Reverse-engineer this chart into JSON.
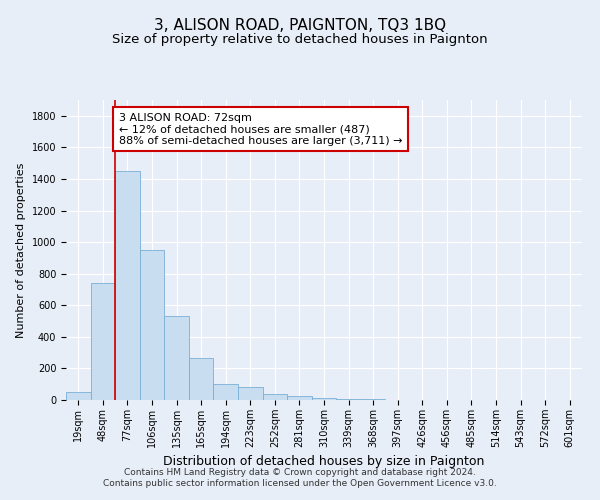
{
  "title": "3, ALISON ROAD, PAIGNTON, TQ3 1BQ",
  "subtitle": "Size of property relative to detached houses in Paignton",
  "xlabel": "Distribution of detached houses by size in Paignton",
  "ylabel": "Number of detached properties",
  "categories": [
    "19sqm",
    "48sqm",
    "77sqm",
    "106sqm",
    "135sqm",
    "165sqm",
    "194sqm",
    "223sqm",
    "252sqm",
    "281sqm",
    "310sqm",
    "339sqm",
    "368sqm",
    "397sqm",
    "426sqm",
    "456sqm",
    "485sqm",
    "514sqm",
    "543sqm",
    "572sqm",
    "601sqm"
  ],
  "values": [
    50,
    740,
    1450,
    950,
    530,
    265,
    100,
    80,
    40,
    25,
    12,
    8,
    5,
    3,
    2,
    1,
    1,
    0,
    0,
    0,
    0
  ],
  "bar_color": "#c9ddf0",
  "bar_edge_color": "#7aafd4",
  "annotation_text": "3 ALISON ROAD: 72sqm\n← 12% of detached houses are smaller (487)\n88% of semi-detached houses are larger (3,711) →",
  "annotation_box_color": "#ffffff",
  "annotation_border_color": "#cc0000",
  "background_color": "#e8eef8",
  "grid_color": "#ffffff",
  "property_line_color": "#cc0000",
  "footer_line1": "Contains HM Land Registry data © Crown copyright and database right 2024.",
  "footer_line2": "Contains public sector information licensed under the Open Government Licence v3.0.",
  "ylim": [
    0,
    1900
  ],
  "title_fontsize": 11,
  "subtitle_fontsize": 9.5,
  "xlabel_fontsize": 9,
  "ylabel_fontsize": 8,
  "tick_fontsize": 7,
  "annotation_fontsize": 8,
  "footer_fontsize": 6.5
}
